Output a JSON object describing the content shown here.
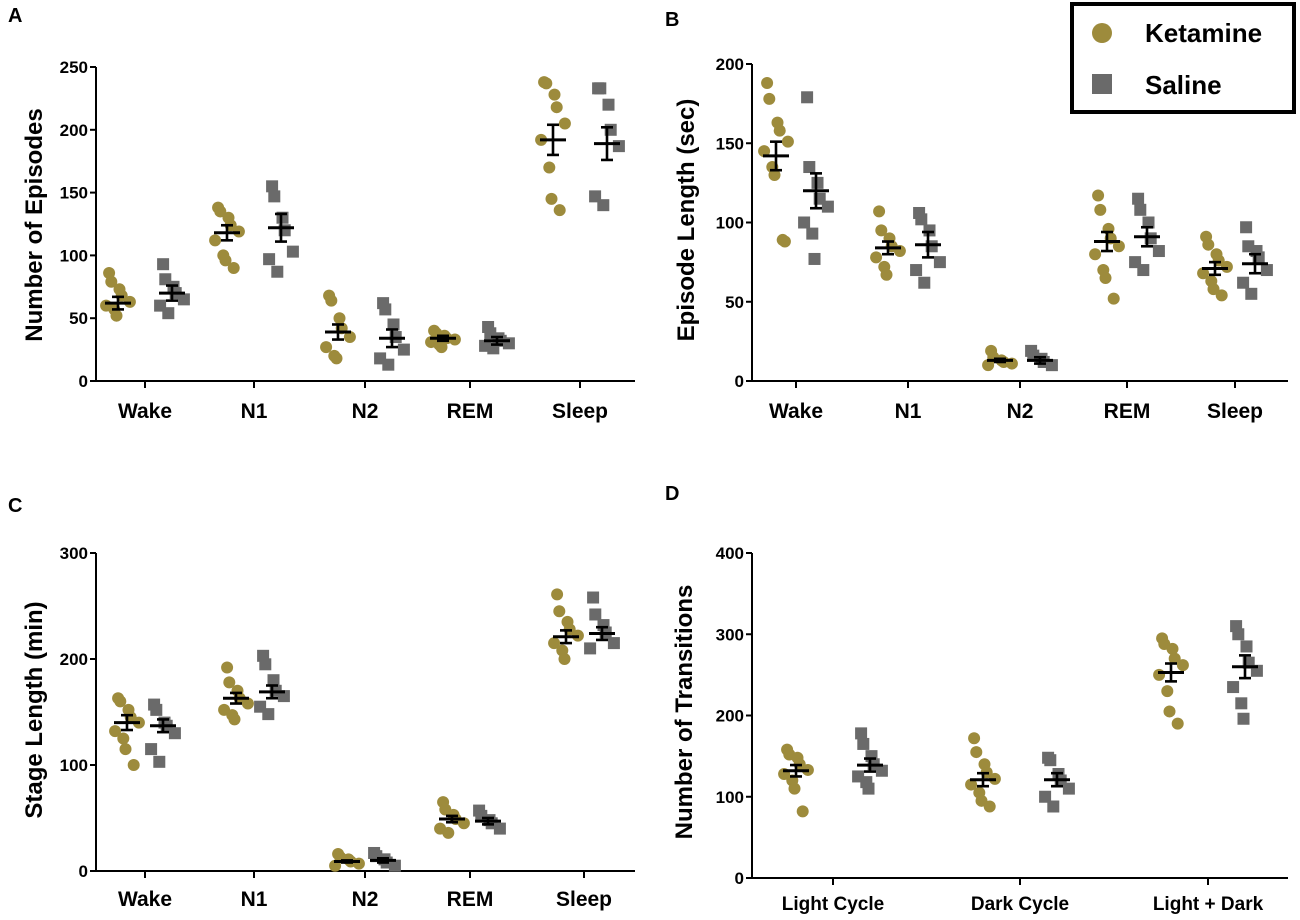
{
  "colors": {
    "ketamine": "#9d8b3c",
    "saline": "#6a6a6a",
    "axis": "#000000"
  },
  "legend": {
    "items": [
      {
        "label": "Ketamine",
        "marker": "circle"
      },
      {
        "label": "Saline",
        "marker": "square"
      }
    ]
  },
  "chart_data": [
    {
      "panel": "A",
      "type": "scatter",
      "ylabel": "Number of Episodes",
      "ylim": [
        0,
        250
      ],
      "yticks": [
        0,
        50,
        100,
        150,
        200,
        250
      ],
      "categories": [
        "Wake",
        "N1",
        "N2",
        "REM",
        "Sleep"
      ],
      "series": [
        {
          "name": "Ketamine",
          "mean": [
            62,
            118,
            39,
            34,
            192
          ],
          "sem": [
            5,
            6,
            6,
            2,
            12
          ],
          "points": [
            [
              86,
              79,
              73,
              68,
              63,
              60,
              57,
              52
            ],
            [
              138,
              135,
              130,
              124,
              119,
              112,
              100,
              96,
              90
            ],
            [
              68,
              64,
              50,
              42,
              35,
              27,
              20,
              18
            ],
            [
              40,
              38,
              36,
              34,
              33,
              31,
              29,
              27
            ],
            [
              238,
              237,
              228,
              218,
              205,
              192,
              170,
              145,
              136
            ]
          ]
        },
        {
          "name": "Saline",
          "mean": [
            70,
            122,
            34,
            32,
            189
          ],
          "sem": [
            6,
            11,
            7,
            3,
            13
          ],
          "points": [
            [
              93,
              81,
              75,
              70,
              65,
              60,
              54
            ],
            [
              155,
              147,
              130,
              120,
              103,
              97,
              87
            ],
            [
              62,
              57,
              45,
              35,
              25,
              18,
              13
            ],
            [
              43,
              38,
              34,
              32,
              30,
              28,
              26
            ],
            [
              233,
              233,
              220,
              200,
              187,
              147,
              140
            ]
          ]
        }
      ]
    },
    {
      "panel": "B",
      "type": "scatter",
      "ylabel": "Episode Length (sec)",
      "ylim": [
        0,
        200
      ],
      "yticks": [
        0,
        50,
        100,
        150,
        200
      ],
      "categories": [
        "Wake",
        "N1",
        "N2",
        "REM",
        "Sleep"
      ],
      "series": [
        {
          "name": "Ketamine",
          "mean": [
            142,
            84,
            13,
            88,
            71
          ],
          "sem": [
            9,
            4,
            1,
            6,
            4
          ],
          "points": [
            [
              188,
              178,
              163,
              158,
              151,
              145,
              135,
              130,
              89,
              88
            ],
            [
              107,
              95,
              90,
              85,
              82,
              78,
              72,
              67
            ],
            [
              19,
              15,
              13,
              12,
              11,
              10
            ],
            [
              117,
              108,
              96,
              90,
              85,
              80,
              70,
              65,
              52
            ],
            [
              91,
              86,
              80,
              76,
              72,
              68,
              63,
              58,
              54
            ]
          ]
        },
        {
          "name": "Saline",
          "mean": [
            120,
            86,
            13,
            91,
            74
          ],
          "sem": [
            11,
            8,
            2,
            6,
            6
          ],
          "points": [
            [
              179,
              135,
              125,
              115,
              110,
              100,
              93,
              77
            ],
            [
              106,
              102,
              95,
              85,
              75,
              70,
              62
            ],
            [
              19,
              16,
              14,
              12,
              10
            ],
            [
              115,
              108,
              100,
              90,
              82,
              75,
              70
            ],
            [
              97,
              85,
              82,
              78,
              70,
              62,
              55
            ]
          ]
        }
      ]
    },
    {
      "panel": "C",
      "type": "scatter",
      "ylabel": "Stage Length (min)",
      "ylim": [
        0,
        300
      ],
      "yticks": [
        0,
        100,
        200,
        300
      ],
      "categories": [
        "Wake",
        "N1",
        "N2",
        "REM",
        "Sleep"
      ],
      "series": [
        {
          "name": "Ketamine",
          "mean": [
            140,
            163,
            9,
            49,
            221
          ],
          "sem": [
            7,
            5,
            1,
            3,
            6
          ],
          "points": [
            [
              163,
              160,
              152,
              145,
              140,
              132,
              125,
              115,
              100
            ],
            [
              192,
              178,
              170,
              163,
              158,
              152,
              147,
              143
            ],
            [
              16,
              13,
              11,
              9,
              7,
              5
            ],
            [
              65,
              58,
              53,
              49,
              45,
              40,
              36
            ],
            [
              261,
              245,
              235,
              228,
              222,
              215,
              208,
              200
            ]
          ]
        },
        {
          "name": "Saline",
          "mean": [
            137,
            169,
            10,
            47,
            224
          ],
          "sem": [
            6,
            6,
            2,
            3,
            6
          ],
          "points": [
            [
              157,
              152,
              140,
              137,
              130,
              115,
              103
            ],
            [
              203,
              195,
              180,
              170,
              165,
              155,
              148
            ],
            [
              17,
              14,
              11,
              8,
              5
            ],
            [
              57,
              52,
              48,
              45,
              40
            ],
            [
              258,
              242,
              232,
              225,
              215,
              210
            ]
          ]
        }
      ]
    },
    {
      "panel": "D",
      "type": "scatter",
      "ylabel": "Number of Transitions",
      "ylim": [
        0,
        400
      ],
      "yticks": [
        0,
        100,
        200,
        300,
        400
      ],
      "categories": [
        "Light Cycle",
        "Dark Cycle",
        "Light + Dark"
      ],
      "series": [
        {
          "name": "Ketamine",
          "mean": [
            132,
            121,
            253
          ],
          "sem": [
            7,
            8,
            11
          ],
          "points": [
            [
              158,
              152,
              148,
              140,
              133,
              128,
              120,
              110,
              82
            ],
            [
              172,
              155,
              140,
              130,
              122,
              115,
              105,
              95,
              88
            ],
            [
              295,
              288,
              282,
              270,
              262,
              250,
              230,
              205,
              190
            ]
          ]
        },
        {
          "name": "Saline",
          "mean": [
            139,
            121,
            260
          ],
          "sem": [
            8,
            8,
            14
          ],
          "points": [
            [
              178,
              165,
              150,
              140,
              132,
              125,
              118,
              110
            ],
            [
              148,
              145,
              128,
              120,
              110,
              100,
              88
            ],
            [
              310,
              300,
              285,
              265,
              255,
              235,
              215,
              196
            ]
          ]
        }
      ]
    }
  ]
}
